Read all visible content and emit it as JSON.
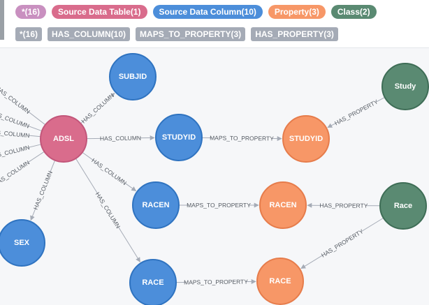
{
  "legend": {
    "labels": [
      {
        "text": "*(16)",
        "color": "#c990c0"
      },
      {
        "text": "Source Data Table(1)",
        "color": "#d96c8c"
      },
      {
        "text": "Source Data Column(10)",
        "color": "#4c8eda"
      },
      {
        "text": "Property(3)",
        "color": "#f79767"
      },
      {
        "text": "Class(2)",
        "color": "#57c7a3"
      }
    ],
    "relationships": [
      {
        "text": "*(16)"
      },
      {
        "text": "HAS_COLUMN(10)"
      },
      {
        "text": "MAPS_TO_PROPERTY(3)"
      },
      {
        "text": "HAS_PROPERTY(3)"
      }
    ]
  },
  "colors": {
    "table_fill": "#d96c8c",
    "table_stroke": "#c2567a",
    "column_fill": "#4c8eda",
    "column_stroke": "#2f73c0",
    "property_fill": "#f79767",
    "property_stroke": "#e67c4b",
    "class_fill": "#5a8a72",
    "class_stroke": "#3e6d56",
    "rel_chip": "#a5abb6",
    "class_chip": "#5a8a72"
  },
  "nodes": [
    {
      "id": "adsl",
      "label": "ADSL",
      "type": "table"
    },
    {
      "id": "subjid",
      "label": "SUBJID",
      "type": "column"
    },
    {
      "id": "studyid",
      "label": "STUDYID",
      "type": "column"
    },
    {
      "id": "racen",
      "label": "RACEN",
      "type": "column"
    },
    {
      "id": "race",
      "label": "RACE",
      "type": "column"
    },
    {
      "id": "sex",
      "label": "SEX",
      "type": "column"
    },
    {
      "id": "studyid_prop",
      "label": "STUDYID",
      "type": "property"
    },
    {
      "id": "racen_prop",
      "label": "RACEN",
      "type": "property"
    },
    {
      "id": "race_prop",
      "label": "RACE",
      "type": "property"
    },
    {
      "id": "study",
      "label": "Study",
      "type": "class"
    },
    {
      "id": "race_class",
      "label": "Race",
      "type": "class"
    }
  ],
  "edges": [
    {
      "from": "adsl",
      "to": "subjid",
      "label": "HAS_COLUMN"
    },
    {
      "from": "adsl",
      "to": "studyid",
      "label": "HAS_COLUMN"
    },
    {
      "from": "adsl",
      "to": "racen",
      "label": "HAS_COLUMN"
    },
    {
      "from": "adsl",
      "to": "race",
      "label": "HAS_COLUMN"
    },
    {
      "from": "adsl",
      "to": "sex",
      "label": "HAS_COLUMN"
    },
    {
      "from": "adsl",
      "to": "offscreen1",
      "label": "HAS_COLUMN"
    },
    {
      "from": "adsl",
      "to": "offscreen2",
      "label": "HAS_COLUMN"
    },
    {
      "from": "adsl",
      "to": "offscreen3",
      "label": "HAS_COLUMN"
    },
    {
      "from": "adsl",
      "to": "offscreen4",
      "label": "HAS_COLUMN"
    },
    {
      "from": "adsl",
      "to": "offscreen5",
      "label": "HAS_COLUMN"
    },
    {
      "from": "studyid",
      "to": "studyid_prop",
      "label": "MAPS_TO_PROPERTY"
    },
    {
      "from": "racen",
      "to": "racen_prop",
      "label": "MAPS_TO_PROPERTY"
    },
    {
      "from": "race",
      "to": "race_prop",
      "label": "MAPS_TO_PROPERTY"
    },
    {
      "from": "study",
      "to": "studyid_prop",
      "label": "HAS_PROPERTY"
    },
    {
      "from": "race_class",
      "to": "racen_prop",
      "label": "HAS_PROPERTY"
    },
    {
      "from": "race_class",
      "to": "race_prop",
      "label": "HAS_PROPERTY"
    }
  ]
}
